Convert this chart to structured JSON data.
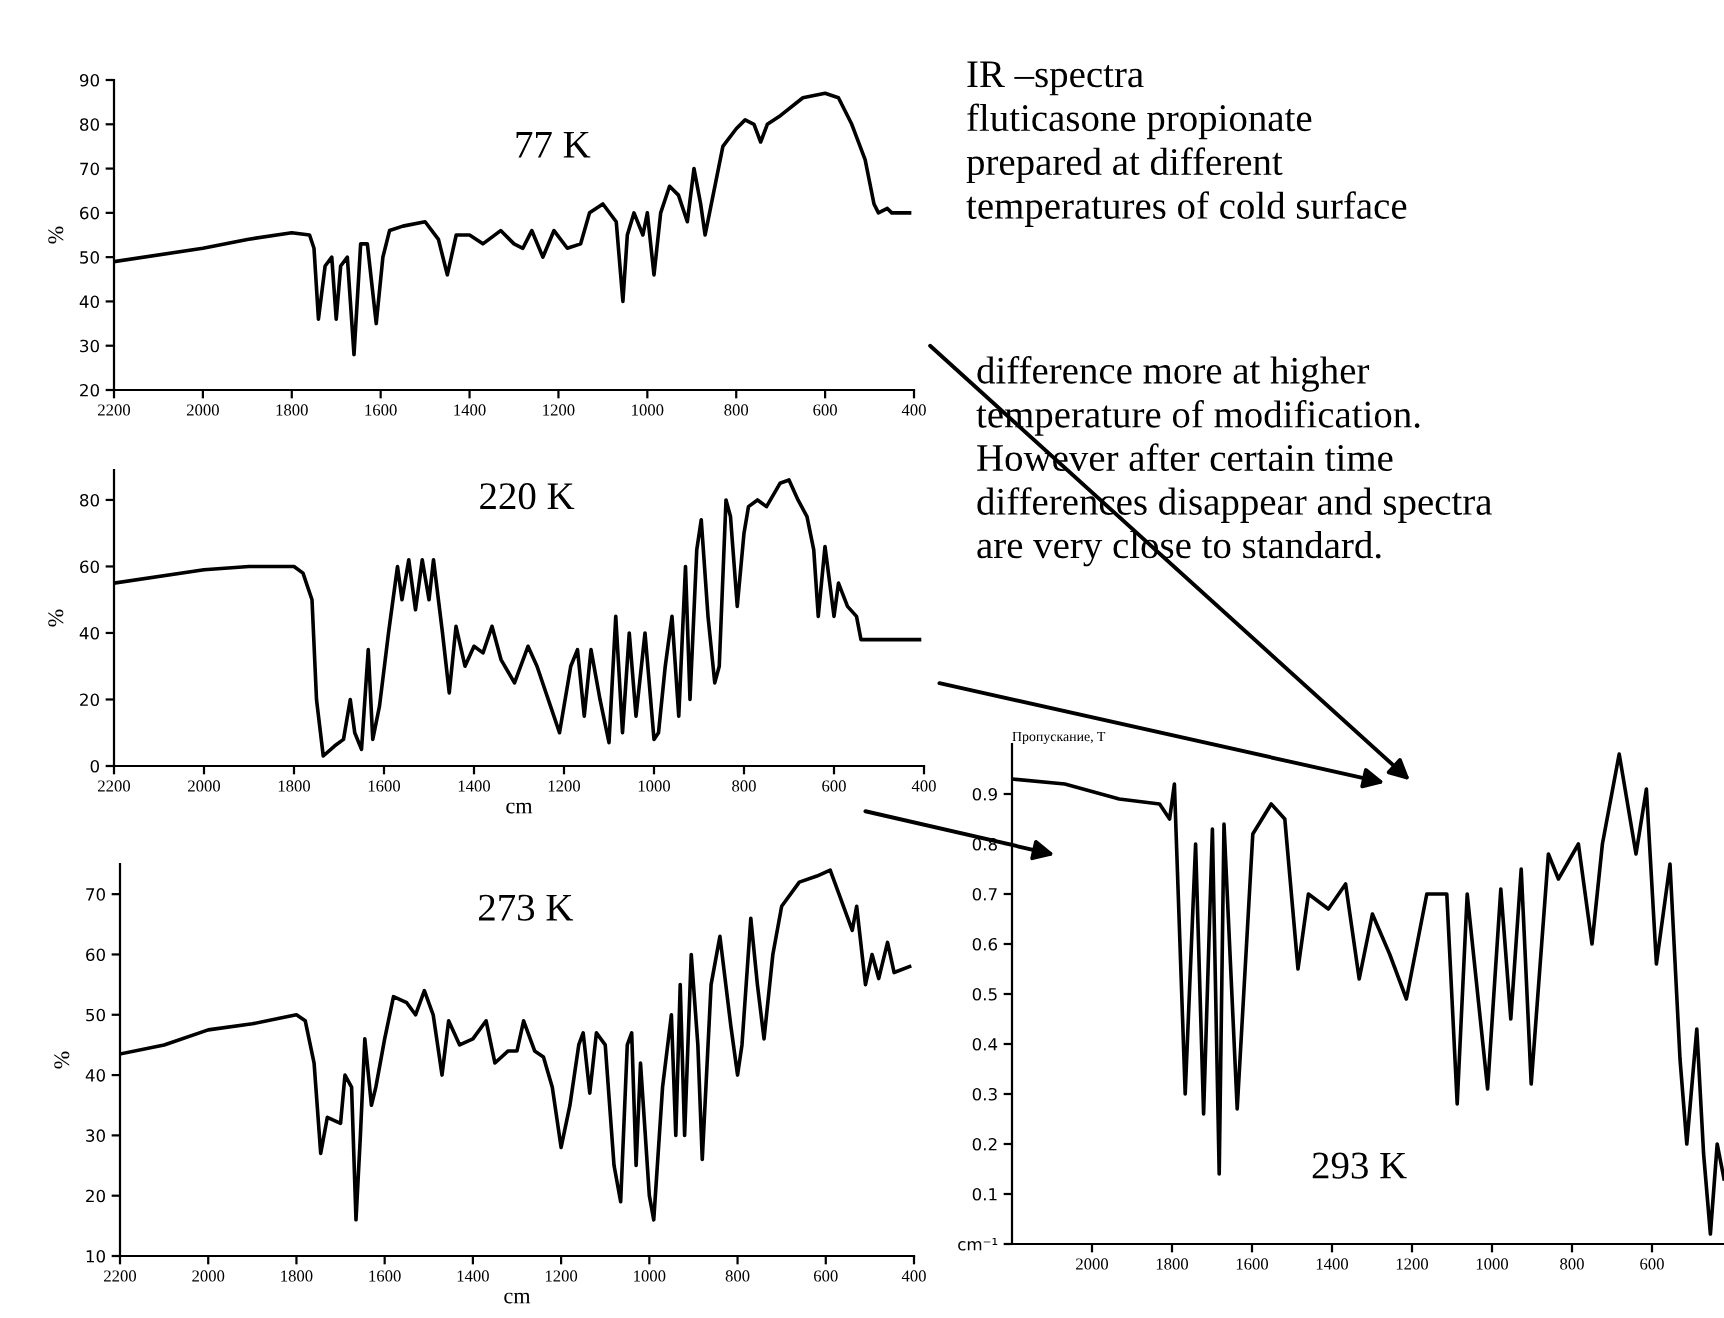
{
  "chart_data": [
    {
      "type": "line",
      "ylabel": "%",
      "xlim": [
        2200,
        400
      ],
      "ylim": [
        20,
        90
      ],
      "xticks": [
        2200,
        2000,
        1800,
        1600,
        1400,
        1200,
        1000,
        800,
        600,
        400
      ],
      "yticks": [
        20,
        30,
        40,
        50,
        60,
        70,
        80,
        90
      ],
      "grid": false,
      "annotations": [
        "77 K"
      ],
      "x": [
        2200,
        2000,
        1900,
        1800,
        1760,
        1750,
        1740,
        1725,
        1710,
        1700,
        1690,
        1675,
        1660,
        1645,
        1630,
        1610,
        1595,
        1580,
        1550,
        1500,
        1470,
        1450,
        1430,
        1400,
        1370,
        1330,
        1300,
        1280,
        1260,
        1235,
        1210,
        1180,
        1150,
        1130,
        1100,
        1070,
        1055,
        1045,
        1030,
        1010,
        1000,
        985,
        970,
        950,
        930,
        910,
        895,
        880,
        870,
        860,
        830,
        800,
        780,
        760,
        745,
        730,
        700,
        650,
        600,
        570,
        540,
        510,
        490,
        480,
        460,
        450,
        410
      ],
      "series": [
        {
          "color": "#000000",
          "values": [
            49,
            52,
            54,
            55.5,
            55,
            52,
            36,
            48,
            50,
            36,
            48,
            50,
            28,
            53,
            53,
            35,
            50,
            56,
            57,
            58,
            54,
            46,
            55,
            55,
            53,
            56,
            53,
            52,
            56,
            50,
            56,
            52,
            53,
            60,
            62,
            58,
            40,
            55,
            60,
            55,
            60,
            46,
            60,
            66,
            64,
            58,
            70,
            62,
            55,
            60,
            75,
            79,
            81,
            80,
            76,
            80,
            82,
            86,
            87,
            86,
            80,
            72,
            62,
            60,
            61,
            60,
            60
          ]
        }
      ]
    },
    {
      "type": "line",
      "ylabel": "%",
      "xlabel": "cm",
      "xlim": [
        2200,
        400
      ],
      "ylim": [
        0,
        89
      ],
      "xticks": [
        2200,
        2000,
        1800,
        1600,
        1400,
        1200,
        1000,
        800,
        600,
        400
      ],
      "yticks": [
        0,
        20,
        40,
        60,
        80
      ],
      "grid": false,
      "annotations": [
        "220 K"
      ],
      "x": [
        2200,
        2000,
        1900,
        1850,
        1800,
        1780,
        1760,
        1750,
        1735,
        1710,
        1690,
        1675,
        1665,
        1650,
        1635,
        1625,
        1610,
        1590,
        1570,
        1560,
        1545,
        1530,
        1515,
        1500,
        1490,
        1470,
        1455,
        1440,
        1420,
        1400,
        1380,
        1360,
        1340,
        1310,
        1280,
        1260,
        1230,
        1210,
        1185,
        1170,
        1155,
        1140,
        1120,
        1100,
        1085,
        1070,
        1055,
        1040,
        1020,
        1000,
        990,
        975,
        960,
        945,
        930,
        920,
        905,
        895,
        880,
        865,
        855,
        840,
        830,
        815,
        800,
        790,
        770,
        750,
        720,
        700,
        680,
        660,
        645,
        635,
        620,
        600,
        590,
        570,
        550,
        540,
        410
      ],
      "series": [
        {
          "color": "#000000",
          "values": [
            55,
            59,
            60,
            60,
            60,
            58,
            50,
            20,
            3,
            6,
            8,
            20,
            10,
            5,
            35,
            8,
            18,
            40,
            60,
            50,
            62,
            47,
            62,
            50,
            62,
            40,
            22,
            42,
            30,
            36,
            34,
            42,
            32,
            25,
            36,
            30,
            18,
            10,
            30,
            35,
            15,
            35,
            20,
            7,
            45,
            10,
            40,
            15,
            40,
            8,
            10,
            30,
            45,
            15,
            60,
            20,
            65,
            74,
            45,
            25,
            30,
            80,
            75,
            48,
            70,
            78,
            80,
            78,
            85,
            86,
            80,
            75,
            65,
            45,
            66,
            45,
            55,
            48,
            45,
            38,
            38
          ]
        }
      ]
    },
    {
      "type": "line",
      "ylabel": "%",
      "xlabel": "cm",
      "xlim": [
        2200,
        400
      ],
      "ylim": [
        10,
        75
      ],
      "xticks": [
        2200,
        2000,
        1800,
        1600,
        1400,
        1200,
        1000,
        800,
        600,
        400
      ],
      "yticks": [
        10,
        20,
        30,
        40,
        50,
        60,
        70
      ],
      "grid": false,
      "annotations": [
        "273 K"
      ],
      "x": [
        2200,
        2100,
        2000,
        1900,
        1800,
        1780,
        1760,
        1745,
        1730,
        1700,
        1690,
        1675,
        1665,
        1655,
        1645,
        1630,
        1620,
        1600,
        1580,
        1550,
        1530,
        1510,
        1490,
        1470,
        1455,
        1430,
        1400,
        1370,
        1350,
        1320,
        1300,
        1285,
        1260,
        1240,
        1220,
        1200,
        1180,
        1160,
        1150,
        1135,
        1120,
        1100,
        1080,
        1065,
        1050,
        1040,
        1030,
        1020,
        1000,
        990,
        970,
        950,
        940,
        930,
        920,
        905,
        890,
        880,
        860,
        840,
        815,
        800,
        790,
        770,
        755,
        740,
        720,
        700,
        660,
        620,
        590,
        570,
        540,
        530,
        510,
        495,
        480,
        460,
        445,
        410
      ],
      "series": [
        {
          "color": "#000000",
          "values": [
            43.5,
            45,
            47.5,
            48.5,
            50,
            49,
            42,
            27,
            33,
            32,
            40,
            38,
            16,
            30,
            46,
            35,
            38,
            46,
            53,
            52,
            50,
            54,
            50,
            40,
            49,
            45,
            46,
            49,
            42,
            44,
            44,
            49,
            44,
            43,
            38,
            28,
            35,
            45,
            47,
            37,
            47,
            45,
            25,
            19,
            45,
            47,
            25,
            42,
            20,
            16,
            38,
            50,
            30,
            55,
            30,
            60,
            45,
            26,
            55,
            63,
            48,
            40,
            45,
            66,
            55,
            46,
            60,
            68,
            72,
            73,
            74,
            70,
            64,
            68,
            55,
            60,
            56,
            62,
            57,
            58
          ]
        }
      ]
    },
    {
      "type": "line",
      "ylabel": "Пропускание, T",
      "xlim": [
        2200,
        420
      ],
      "ylim": [
        0,
        1.0
      ],
      "xticks": [
        2000,
        1800,
        1600,
        1400,
        1200,
        1000,
        800,
        600
      ],
      "yticks": [
        {
          "value": 0,
          "label": "cm⁻¹"
        },
        0.1,
        0.2,
        0.3,
        0.4,
        0.5,
        0.6,
        0.7,
        0.8,
        0.9
      ],
      "grid": false,
      "annotations": [
        "293 K"
      ],
      "x": [
        2200,
        2068,
        1932,
        1831,
        1806,
        1794,
        1767,
        1741,
        1721,
        1699,
        1682,
        1670,
        1637,
        1598,
        1552,
        1518,
        1485,
        1459,
        1409,
        1366,
        1332,
        1299,
        1256,
        1214,
        1163,
        1113,
        1087,
        1062,
        1011,
        978,
        953,
        927,
        902,
        859,
        834,
        784,
        750,
        724,
        682,
        640,
        614,
        589,
        555,
        530,
        513,
        488,
        471,
        454,
        437,
        420
      ],
      "series": [
        {
          "color": "#000000",
          "values": [
            0.93,
            0.92,
            0.89,
            0.88,
            0.85,
            0.92,
            0.3,
            0.8,
            0.26,
            0.83,
            0.14,
            0.84,
            0.27,
            0.82,
            0.88,
            0.85,
            0.55,
            0.7,
            0.67,
            0.72,
            0.53,
            0.66,
            0.58,
            0.49,
            0.7,
            0.7,
            0.28,
            0.7,
            0.31,
            0.71,
            0.45,
            0.75,
            0.32,
            0.78,
            0.73,
            0.8,
            0.6,
            0.8,
            0.98,
            0.78,
            0.91,
            0.56,
            0.76,
            0.37,
            0.2,
            0.43,
            0.18,
            0.02,
            0.2,
            0.13
          ]
        }
      ]
    },
    {
      "type": "other",
      "annotations": [
        "IR –spectra\nfluticasone propionate\nprepared at different\ntemperatures of cold surface",
        "difference more at higher\ntemperature of modification.\nHowever after certain time\ndifferences disappear and spectra\nare very close to standard."
      ]
    }
  ]
}
